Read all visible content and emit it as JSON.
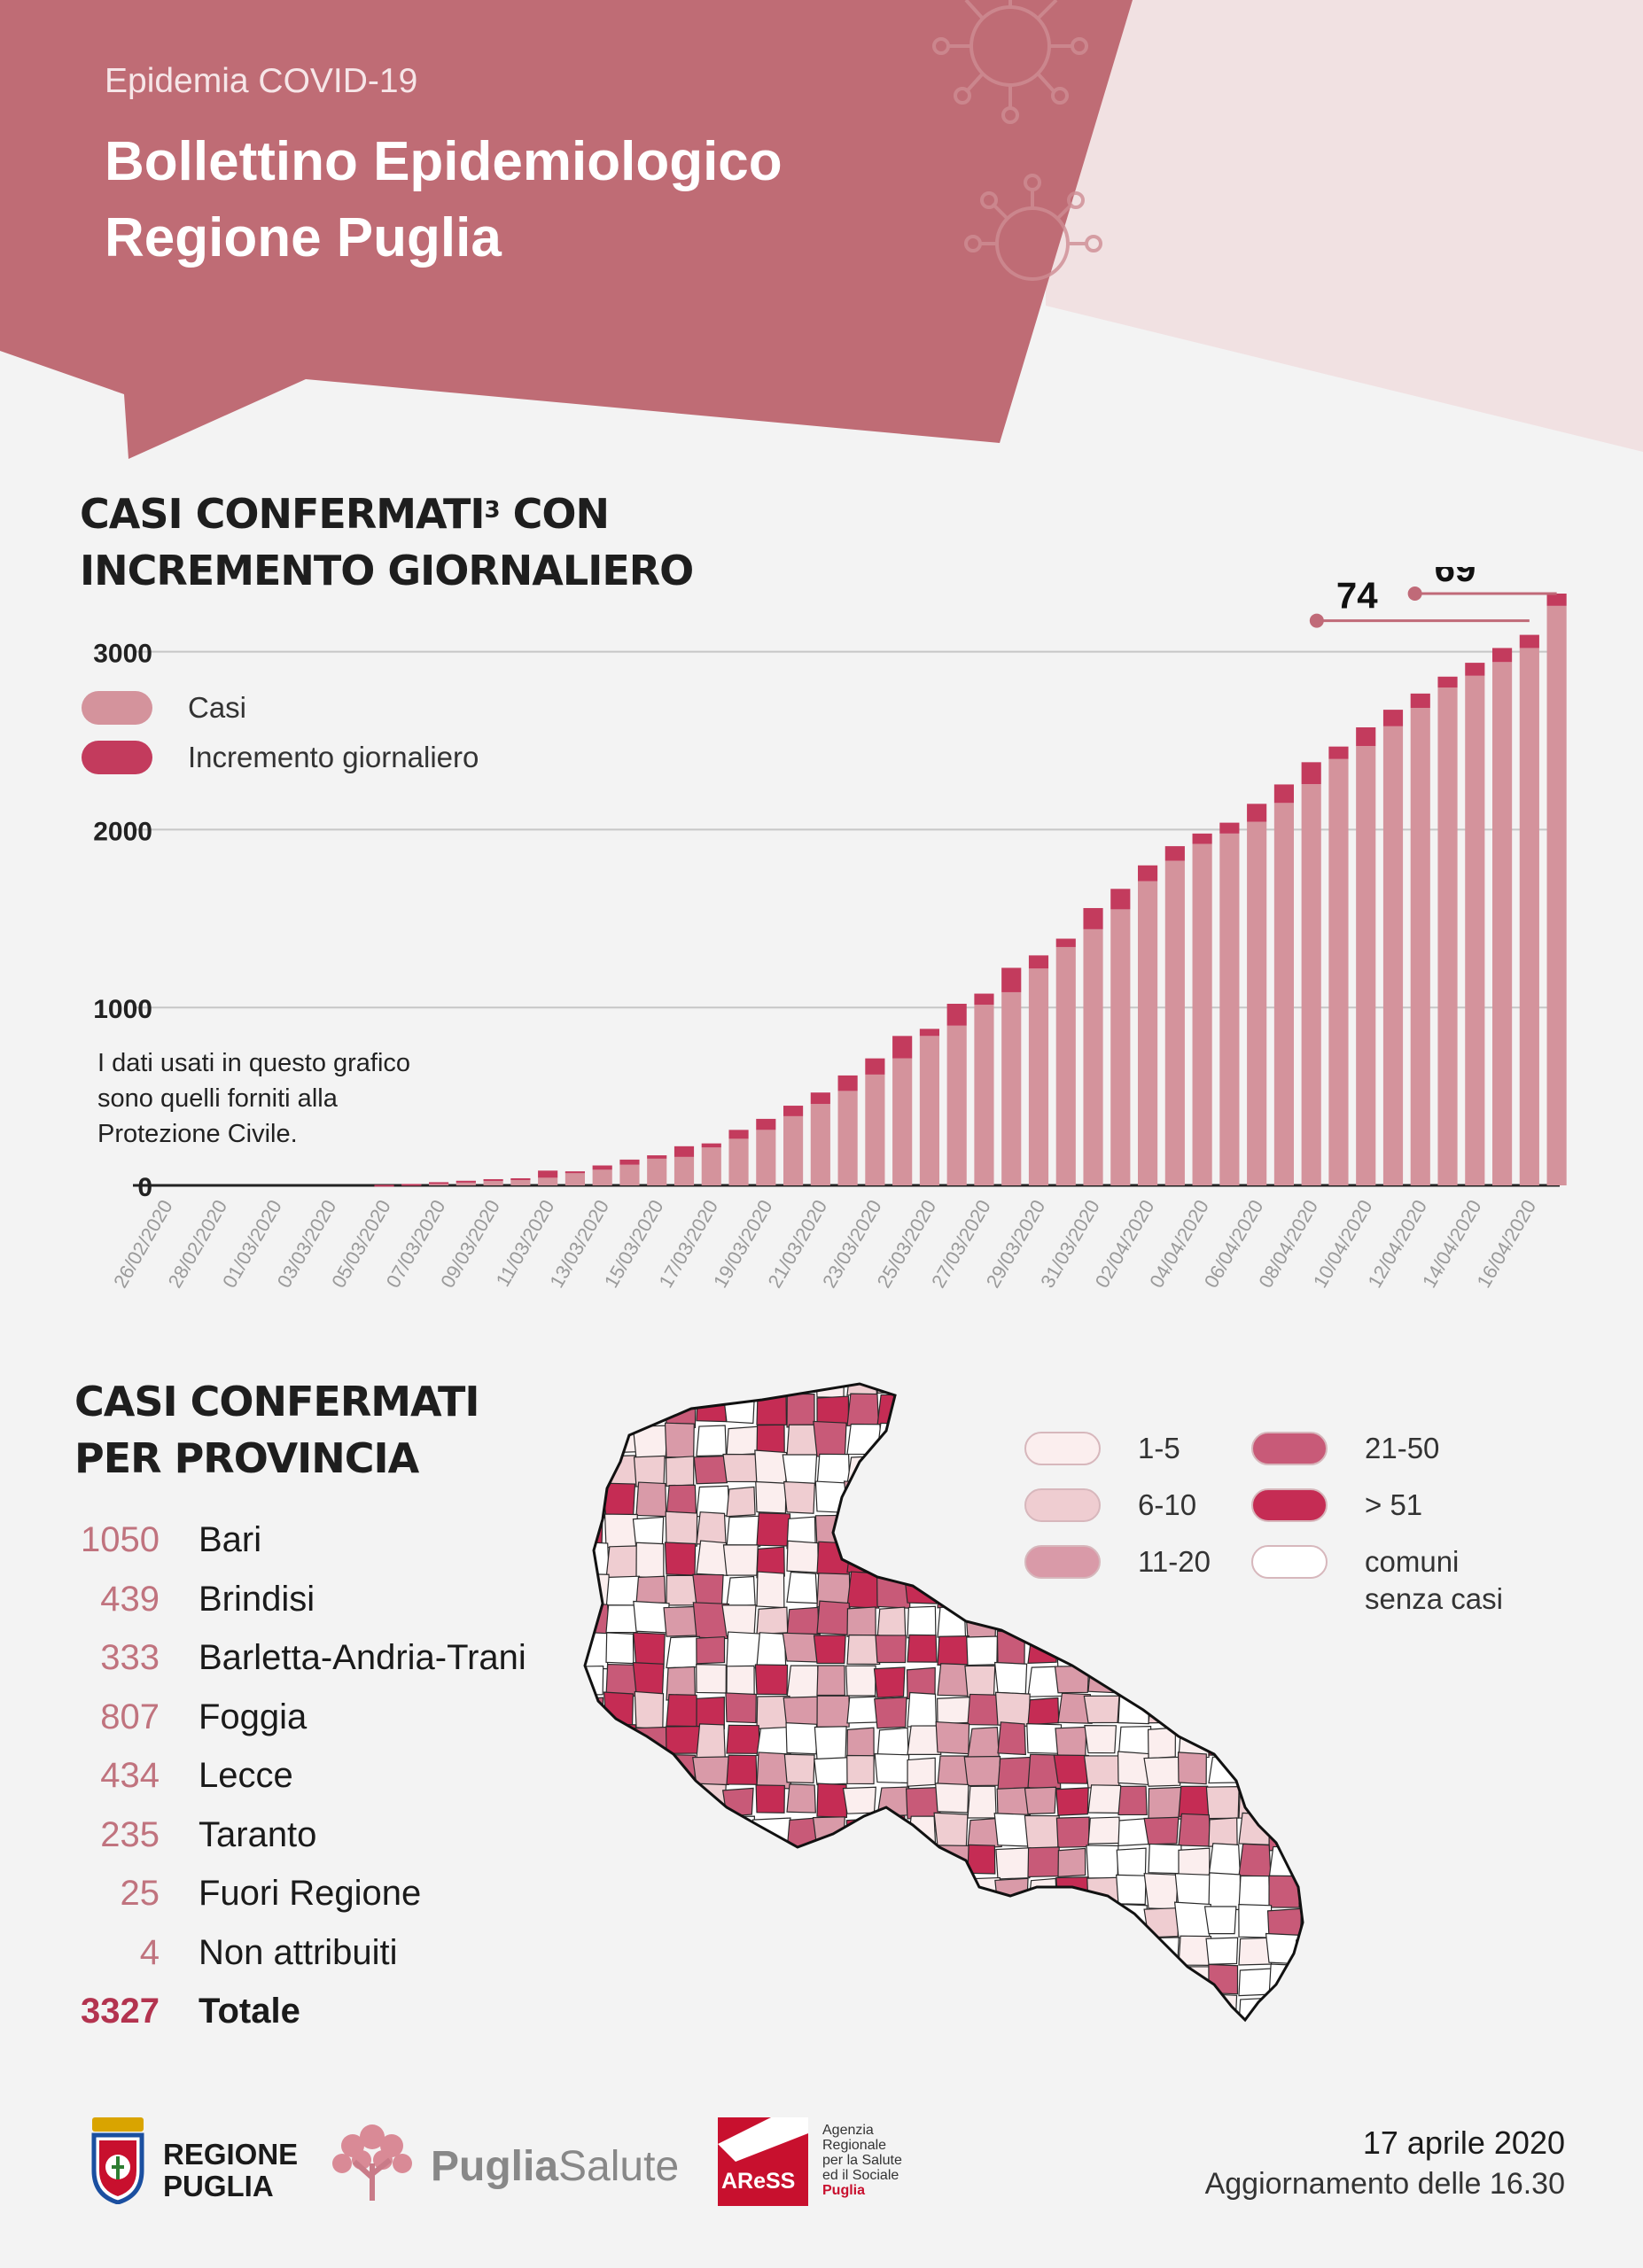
{
  "header": {
    "supertitle": "Epidemia COVID-19",
    "title_line1": "Bollettino Epidemiologico",
    "title_line2": "Regione Puglia"
  },
  "chart_section": {
    "title_line1": "CASI CONFERMATI",
    "title_sup": "3",
    "title_line1_rest": " CON",
    "title_line2": "INCREMENTO GIORNALIERO",
    "note_line1": "I dati usati in questo grafico",
    "note_line2": "sono quelli forniti alla",
    "note_line3": "Protezione Civile."
  },
  "chart_data": {
    "type": "bar",
    "stacked": true,
    "title": "CASI CONFERMATI³ CON INCREMENTO GIORNALIERO",
    "ylim": [
      0,
      3327
    ],
    "yticks": [
      0,
      1000,
      2000,
      3000
    ],
    "grid": true,
    "legend_position": "top-left",
    "x": [
      "26/02/2020",
      "27/02/2020",
      "28/02/2020",
      "29/02/2020",
      "01/03/2020",
      "02/03/2020",
      "03/03/2020",
      "04/03/2020",
      "05/03/2020",
      "06/03/2020",
      "07/03/2020",
      "08/03/2020",
      "09/03/2020",
      "10/03/2020",
      "11/03/2020",
      "12/03/2020",
      "13/03/2020",
      "14/03/2020",
      "15/03/2020",
      "16/03/2020",
      "17/03/2020",
      "18/03/2020",
      "19/03/2020",
      "20/03/2020",
      "21/03/2020",
      "22/03/2020",
      "23/03/2020",
      "24/03/2020",
      "25/03/2020",
      "26/03/2020",
      "27/03/2020",
      "28/03/2020",
      "29/03/2020",
      "30/03/2020",
      "31/03/2020",
      "01/04/2020",
      "02/04/2020",
      "03/04/2020",
      "04/04/2020",
      "05/04/2020",
      "06/04/2020",
      "07/04/2020",
      "08/04/2020",
      "09/04/2020",
      "10/04/2020",
      "11/04/2020",
      "12/04/2020",
      "13/04/2020",
      "14/04/2020",
      "15/04/2020",
      "16/04/2020",
      "17/04/2020"
    ],
    "x_tick_labels": [
      "26/02/2020",
      "28/02/2020",
      "01/03/2020",
      "03/03/2020",
      "05/03/2020",
      "07/03/2020",
      "09/03/2020",
      "11/03/2020",
      "13/03/2020",
      "15/03/2020",
      "17/03/2020",
      "19/03/2020",
      "21/03/2020",
      "23/03/2020",
      "25/03/2020",
      "27/03/2020",
      "29/03/2020",
      "31/03/2020",
      "02/04/2020",
      "04/04/2020",
      "06/04/2020",
      "08/04/2020",
      "10/04/2020",
      "12/04/2020",
      "14/04/2020",
      "16/04/2020"
    ],
    "series": [
      {
        "name": "Casi",
        "color": "#d4939c",
        "values": [
          0,
          0,
          0,
          0,
          0,
          0,
          0,
          0,
          0,
          6,
          13,
          24,
          26,
          35,
          43,
          75,
          88,
          116,
          150,
          160,
          213,
          262,
          312,
          389,
          458,
          531,
          623,
          714,
          840,
          898,
          1016,
          1086,
          1219,
          1340,
          1440,
          1552,
          1710,
          1825,
          1920,
          1978,
          2044,
          2150,
          2256,
          2397,
          2470,
          2581,
          2684,
          2799,
          2865,
          2942,
          3021,
          3258
        ]
      },
      {
        "name": "Incremento giornaliero",
        "color": "#c33b5d",
        "values": [
          0,
          0,
          0,
          0,
          0,
          0,
          0,
          0,
          3,
          2,
          5,
          2,
          9,
          5,
          40,
          4,
          24,
          29,
          19,
          60,
          23,
          50,
          62,
          59,
          64,
          87,
          91,
          126,
          40,
          123,
          62,
          137,
          74,
          47,
          119,
          115,
          89,
          82,
          58,
          61,
          101,
          104,
          123,
          70,
          105,
          93,
          81,
          61,
          73,
          79,
          74,
          69
        ]
      }
    ],
    "annotations": [
      {
        "label": "74",
        "x": "16/04/2020"
      },
      {
        "label": "69",
        "x": "17/04/2020"
      }
    ]
  },
  "legend": {
    "casi": "Casi",
    "incremento": "Incremento giornaliero",
    "casi_color": "#d4939c",
    "incremento_color": "#c33b5d"
  },
  "province_section": {
    "title_line1": "CASI CONFERMATI",
    "title_line2": "PER PROVINCIA",
    "rows": [
      {
        "num": "1050",
        "name": "Bari"
      },
      {
        "num": "439",
        "name": "Brindisi"
      },
      {
        "num": "333",
        "name": "Barletta-Andria-Trani"
      },
      {
        "num": "807",
        "name": "Foggia"
      },
      {
        "num": "434",
        "name": "Lecce"
      },
      {
        "num": "235",
        "name": "Taranto"
      },
      {
        "num": "25",
        "name": "Fuori Regione"
      },
      {
        "num": "4",
        "name": "Non attribuiti"
      }
    ],
    "total": {
      "num": "3327",
      "name": "Totale"
    }
  },
  "map_legend": {
    "items": [
      {
        "label": "1-5",
        "color": "#fbeeee"
      },
      {
        "label": "6-10",
        "color": "#efcdd1"
      },
      {
        "label": "11-20",
        "color": "#d99aa8"
      },
      {
        "label": "21-50",
        "color": "#c85a78"
      },
      {
        "label": "> 51",
        "color": "#c52c54"
      },
      {
        "label_line1": "comuni",
        "label_line2": "senza casi",
        "color": "#ffffff"
      }
    ]
  },
  "footer": {
    "logo1_line1": "REGIONE",
    "logo1_line2": "PUGLIA",
    "logo2_a": "Puglia",
    "logo2_b": "Salute",
    "logo3_mark": "AReSS",
    "logo3_line1": "Agenzia",
    "logo3_line2": "Regionale",
    "logo3_line3": "per la Salute",
    "logo3_line4": "ed il Sociale",
    "logo3_line5": "Puglia",
    "date": "17 aprile 2020",
    "update": "Aggiornamento delle 16.30"
  }
}
